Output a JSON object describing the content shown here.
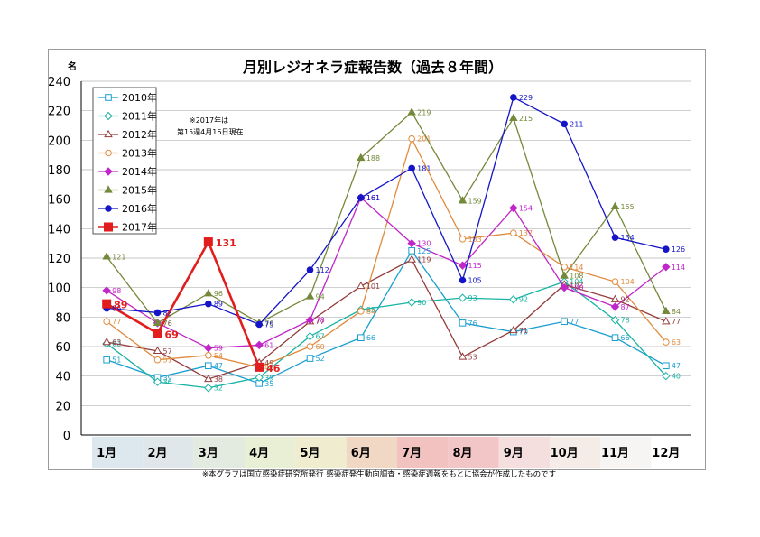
{
  "chart_data": {
    "type": "line",
    "title": "月別レジオネラ症報告数（過去８年間）",
    "y_unit": "名",
    "ylim": [
      0,
      240
    ],
    "y_ticks": [
      "0",
      "20",
      "40",
      "60",
      "80",
      "100",
      "120",
      "140",
      "160",
      "180",
      "200",
      "220",
      "240"
    ],
    "categories": [
      "1月",
      "2月",
      "3月",
      "4月",
      "5月",
      "6月",
      "7月",
      "8月",
      "9月",
      "10月",
      "11月",
      "12月"
    ],
    "grid": true,
    "legend_placement": "top-left",
    "note_lines": [
      "※2017年は",
      "第15週4月16日現在"
    ],
    "source_note": "※本グラフは国立感染症研究所発行 感染症発生動向調査・感染症週報をもとに協会が作成したものです",
    "series": [
      {
        "name": "2010年",
        "color": "#1a9ed1",
        "marker": "square-open",
        "values": [
          51,
          39,
          47,
          35,
          52,
          66,
          125,
          76,
          70,
          77,
          66,
          47
        ]
      },
      {
        "name": "2011年",
        "color": "#19b3a4",
        "marker": "diamond-open",
        "values": [
          62,
          36,
          32,
          39,
          67,
          85,
          90,
          93,
          92,
          104,
          78,
          40
        ]
      },
      {
        "name": "2012年",
        "color": "#943b3b",
        "marker": "triangle-open",
        "values": [
          63,
          57,
          38,
          49,
          77,
          101,
          119,
          53,
          71,
          102,
          92,
          77
        ]
      },
      {
        "name": "2013年",
        "color": "#e08a3c",
        "marker": "circle-open",
        "values": [
          77,
          51,
          54,
          46,
          60,
          84,
          201,
          133,
          137,
          114,
          104,
          63
        ]
      },
      {
        "name": "2014年",
        "color": "#c026c8",
        "marker": "diamond-filled",
        "values": [
          98,
          76,
          59,
          61,
          78,
          161,
          130,
          115,
          154,
          100,
          87,
          114
        ]
      },
      {
        "name": "2015年",
        "color": "#74893a",
        "marker": "triangle-filled",
        "values": [
          121,
          76,
          96,
          76,
          94,
          188,
          219,
          159,
          215,
          108,
          155,
          84
        ]
      },
      {
        "name": "2016年",
        "color": "#1414c8",
        "marker": "circle-filled",
        "values": [
          86,
          83,
          89,
          75,
          112,
          161,
          181,
          105,
          229,
          211,
          134,
          126
        ]
      },
      {
        "name": "2017年",
        "color": "#e21d1d",
        "marker": "square-filled",
        "values": [
          89,
          69,
          131,
          46,
          null,
          null,
          null,
          null,
          null,
          null,
          null,
          null
        ]
      }
    ],
    "category_band_colors": [
      "#dde7ee",
      "#dfe7ea",
      "#e3eadf",
      "#e8efd4",
      "#efecd0",
      "#f1d8c4",
      "#f2c2c0",
      "#f2c6c6",
      "#f4dede",
      "#f5ece8",
      "#f7f5f3",
      "#ffffff"
    ]
  }
}
